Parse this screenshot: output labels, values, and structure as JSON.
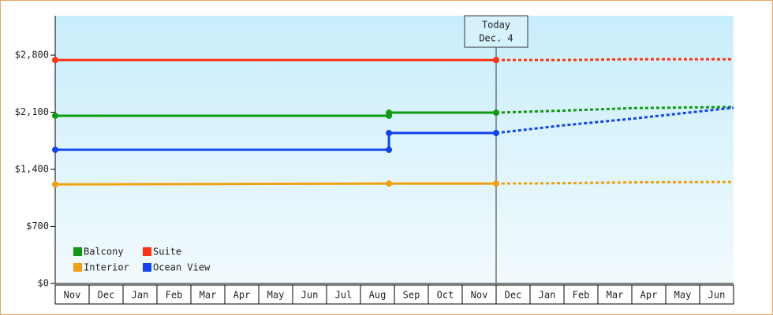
{
  "chart_data": {
    "type": "line",
    "categories": [
      "Nov",
      "Dec",
      "Jan",
      "Feb",
      "Mar",
      "Apr",
      "May",
      "Jun",
      "Jul",
      "Aug",
      "Sep",
      "Oct",
      "Nov",
      "Dec",
      "Jan",
      "Feb",
      "Mar",
      "Apr",
      "May",
      "Jun"
    ],
    "xlim": [
      0,
      20
    ],
    "ylim": [
      0,
      3283
    ],
    "yticks": [
      {
        "value": 0,
        "label": "$0"
      },
      {
        "value": 700,
        "label": "$700"
      },
      {
        "value": 1400,
        "label": "$1,400"
      },
      {
        "value": 2100,
        "label": "$2,100"
      },
      {
        "value": 2800,
        "label": "$2,800"
      }
    ],
    "today": {
      "x": 13,
      "label": [
        "Today",
        "Dec. 4"
      ]
    },
    "series": [
      {
        "name": "Balcony",
        "color": "#119911",
        "x": [
          0,
          9.84,
          9.84,
          13
        ],
        "values": [
          2057,
          2057,
          2095,
          2095
        ],
        "forecast": {
          "x": [
            13,
            15,
            17,
            20
          ],
          "values": [
            2095,
            2120,
            2150,
            2165
          ]
        }
      },
      {
        "name": "Suite",
        "color": "#ff3311",
        "x": [
          0,
          13
        ],
        "values": [
          2740,
          2740
        ],
        "forecast": {
          "x": [
            13,
            15,
            17,
            20
          ],
          "values": [
            2740,
            2740,
            2750,
            2750
          ]
        }
      },
      {
        "name": "Interior",
        "color": "#f0a010",
        "x": [
          0,
          9.84,
          13
        ],
        "values": [
          1215,
          1225,
          1225
        ],
        "forecast": {
          "x": [
            13,
            15,
            17,
            20
          ],
          "values": [
            1225,
            1230,
            1240,
            1245
          ]
        }
      },
      {
        "name": "Ocean View",
        "color": "#1144ee",
        "x": [
          0,
          9.84,
          9.84,
          13
        ],
        "values": [
          1640,
          1640,
          1845,
          1845
        ],
        "forecast": {
          "x": [
            13,
            15,
            17,
            20
          ],
          "values": [
            1845,
            1940,
            2020,
            2155
          ]
        }
      }
    ]
  }
}
